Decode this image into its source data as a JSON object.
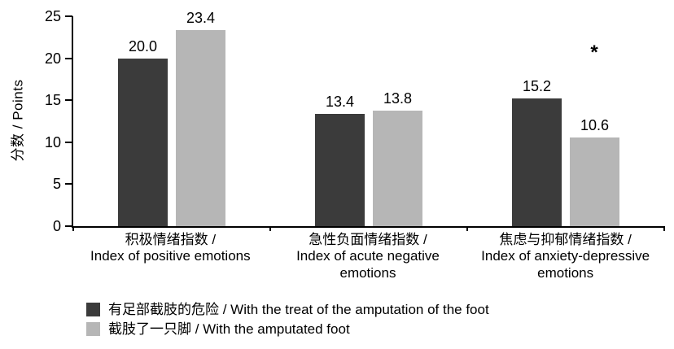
{
  "chart_data": {
    "type": "bar",
    "title": "",
    "ylabel": "分数 / Points",
    "xlabel": "",
    "ylim": [
      0,
      25
    ],
    "yticks": [
      0,
      5,
      10,
      15,
      20,
      25
    ],
    "grid": false,
    "legend_position": "bottom-left",
    "categories": [
      [
        "积极情绪指数 /",
        "Index of positive emotions"
      ],
      [
        "急性负面情绪指数 /",
        "Index of acute negative",
        "emotions"
      ],
      [
        "焦虑与抑郁情绪指数 /",
        "Index of anxiety-depressive",
        "emotions"
      ]
    ],
    "series": [
      {
        "name": "有足部截肢的危险 / With the treat of the amputation of the foot",
        "color": "#3b3b3b",
        "values": [
          20.0,
          13.4,
          15.2
        ]
      },
      {
        "name": "截肢了一只脚 / With the amputated foot",
        "color": "#b6b6b6",
        "values": [
          23.4,
          13.8,
          10.6
        ]
      }
    ],
    "value_labels": [
      [
        "20.0",
        "13.4",
        "15.2"
      ],
      [
        "23.4",
        "13.8",
        "10.6"
      ]
    ],
    "annotations": [
      {
        "text": "*",
        "category_index": 2,
        "series_index": 1
      }
    ]
  }
}
